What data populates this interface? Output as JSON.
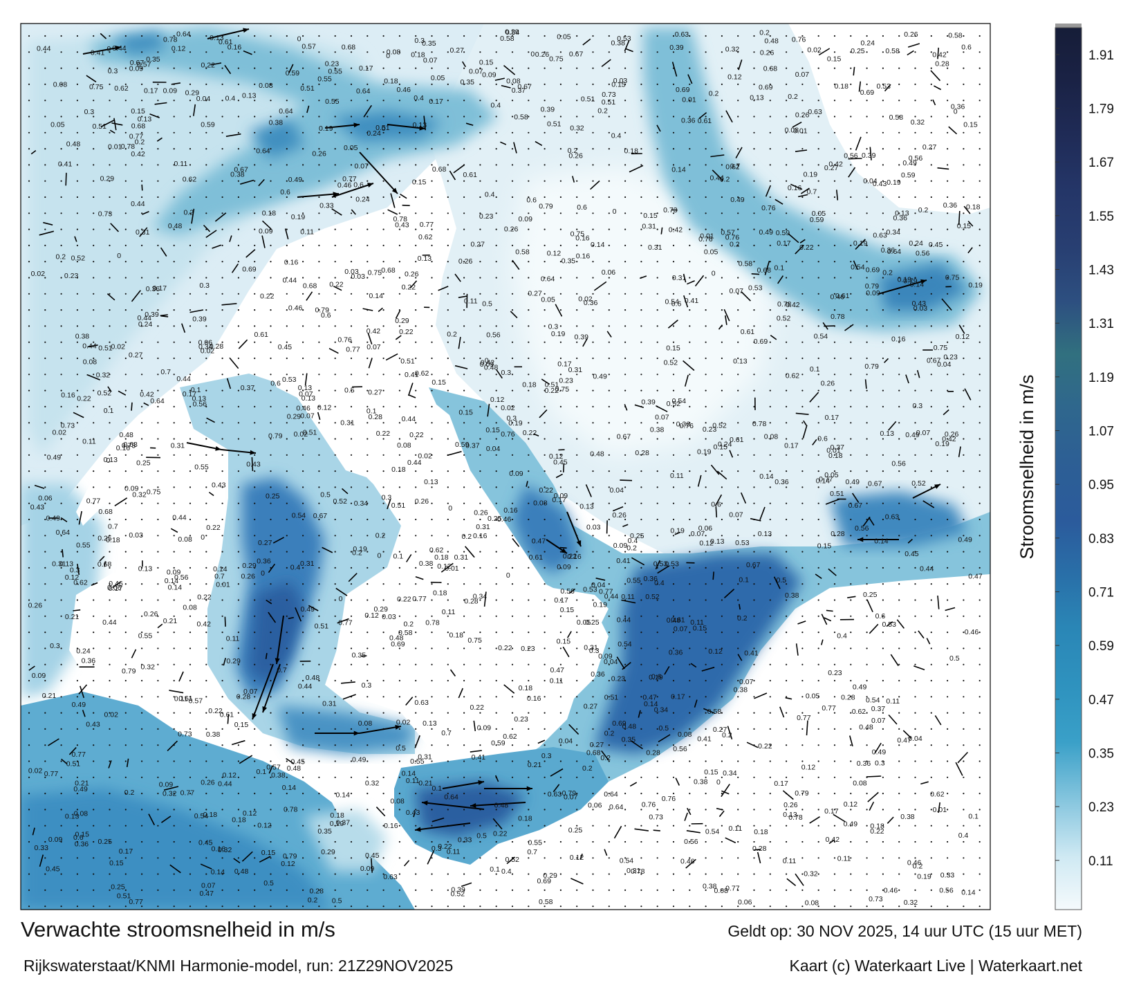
{
  "map": {
    "title": "Verwachte stroomsnelheid in m/s",
    "source_line": "Rijkswaterstaat/KNMI Harmonie-model, run: 21Z29NOV2025",
    "valid_line": "Geldt op: 30 NOV 2025, 14 uur UTC (15 uur MET)",
    "credit_line": "Kaart (c) Waterkaart Live | Waterkaart.net",
    "colorbar": {
      "label": "Stroomsnelheid in m/s",
      "ticks": [
        "0.11",
        "0.23",
        "0.35",
        "0.47",
        "0.59",
        "0.71",
        "0.83",
        "0.95",
        "1.07",
        "1.19",
        "1.31",
        "1.43",
        "1.55",
        "1.67",
        "1.79",
        "1.91"
      ],
      "colors": [
        "#f5fafc",
        "#d8eef5",
        "#9fd2e5",
        "#3aa0c8",
        "#2f93bf",
        "#2a86b6",
        "#296fa8",
        "#2b5b9c",
        "#2d5f94",
        "#2f678d",
        "#31707f",
        "#2d4f80",
        "#283f72",
        "#243567",
        "#1f2b56",
        "#161d38"
      ]
    },
    "water_color_low": "#e4f2f8",
    "water_color_high": "#2b5ea0",
    "arrow_color": "#000000",
    "speed_labels": [
      "0.22",
      "0.12",
      "0.19",
      "0.26",
      "0.25",
      "0.24",
      "0.23",
      "0.17",
      "0.19",
      "0.18",
      "0.16",
      "0.13",
      "0.07",
      "0.15",
      "0.14",
      "0.11",
      "0.08",
      "0.09",
      "0.1",
      "0.2",
      "0.21",
      "0.22",
      "0.18",
      "0.13",
      "0.16",
      "0.26",
      "0.27",
      "0.28",
      "0.29",
      "0.32",
      "0.3",
      "0.34",
      "0.31",
      "0.36",
      "0.35",
      "0.33",
      "0.39",
      "0.44",
      "0.41",
      "0.47",
      "0.45",
      "0.46",
      "0.37",
      "0.4",
      "0.43",
      "0.02",
      "0.03",
      "0.06",
      "0.05",
      "0.04",
      "0.01",
      "0",
      "0.12",
      "0.14",
      "0.15",
      "0.17",
      "0.11",
      "0.09",
      "0.08",
      "0.07",
      "0.48",
      "0.5",
      "0.49",
      "0.52",
      "0.54",
      "0.56",
      "0.57",
      "0.55",
      "0.53",
      "0.51",
      "0.58",
      "0.59",
      "0.6",
      "0.61",
      "0.62",
      "0.63",
      "0.64",
      "0.67",
      "0.68",
      "0.69",
      "0.7",
      "0.73",
      "0.75",
      "0.76",
      "0.77",
      "0.78",
      "0.79",
      "0.2",
      "0.38",
      "0.42"
    ],
    "regions": [
      {
        "name": "north-west-open-sea"
      },
      {
        "name": "north-east-open-sea"
      },
      {
        "name": "channel-estuary-east"
      },
      {
        "name": "south-inlet"
      },
      {
        "name": "south-west-open-sea"
      },
      {
        "name": "central-sea-basin"
      }
    ]
  }
}
